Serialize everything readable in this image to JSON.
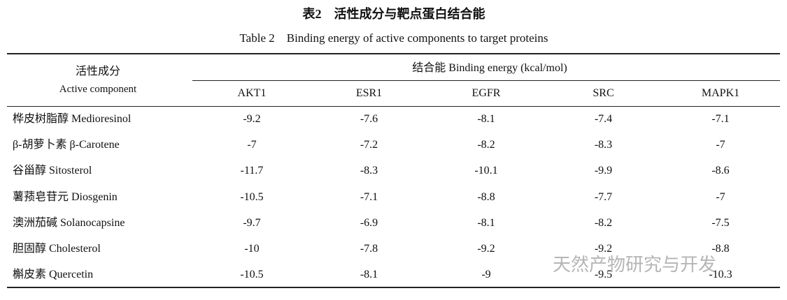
{
  "header": {
    "title": "表2　活性成分与靶点蛋白结合能",
    "subtitle": "Table 2　Binding energy of active components to target proteins"
  },
  "table": {
    "row_header": [
      "活性成分",
      "Active component"
    ],
    "group_header": "结合能 Binding energy (kcal/mol)",
    "columns": [
      "AKT1",
      "ESR1",
      "EGFR",
      "SRC",
      "MAPK1"
    ],
    "rows": [
      {
        "name": "桦皮树脂醇 Medioresinol",
        "values": [
          "-9.2",
          "-7.6",
          "-8.1",
          "-7.4",
          "-7.1"
        ]
      },
      {
        "name": "β-胡萝卜素 β-Carotene",
        "values": [
          "-7",
          "-7.2",
          "-8.2",
          "-8.3",
          "-7"
        ]
      },
      {
        "name": "谷甾醇 Sitosterol",
        "values": [
          "-11.7",
          "-8.3",
          "-10.1",
          "-9.9",
          "-8.6"
        ]
      },
      {
        "name": "薯蓣皂苷元 Diosgenin",
        "values": [
          "-10.5",
          "-7.1",
          "-8.8",
          "-7.7",
          "-7"
        ]
      },
      {
        "name": "澳洲茄碱 Solanocapsine",
        "values": [
          "-9.7",
          "-6.9",
          "-8.1",
          "-8.2",
          "-7.5"
        ]
      },
      {
        "name": "胆固醇 Cholesterol",
        "values": [
          "-10",
          "-7.8",
          "-9.2",
          "-9.2",
          "-8.8"
        ]
      },
      {
        "name": "槲皮素 Quercetin",
        "values": [
          "-10.5",
          "-8.1",
          "-9",
          "-9.5",
          "-10.3"
        ]
      }
    ]
  },
  "watermark": "天然产物研究与开发"
}
